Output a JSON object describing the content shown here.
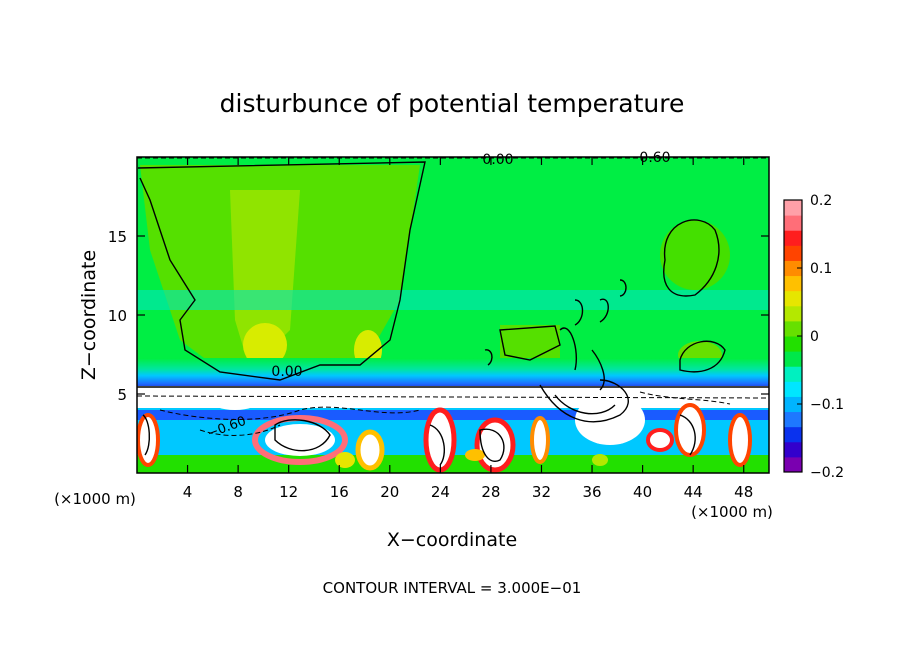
{
  "chart_data": {
    "type": "heatmap",
    "title": "disturbunce of potential temperature",
    "xlabel": "X−coordinate",
    "ylabel": "Z−coordinate",
    "x_unit_left": "(×1000 m)",
    "x_unit_right": "(×1000 m)",
    "x_ticks": [
      "4",
      "8",
      "12",
      "16",
      "20",
      "24",
      "28",
      "32",
      "36",
      "40",
      "44",
      "48"
    ],
    "y_ticks": [
      "5",
      "10",
      "15"
    ],
    "xlim": [
      0,
      50
    ],
    "ylim": [
      0,
      20
    ],
    "contour_interval_text": "CONTOUR INTERVAL = 3.000E−01",
    "contour_labels": [
      "0.00",
      "0.00",
      "0.00",
      "0.60",
      "−0.60"
    ],
    "colorbar": {
      "ticks": [
        "0.2",
        "0.1",
        "0",
        "−0.1",
        "−0.2"
      ],
      "range": [
        -0.2,
        0.2
      ],
      "colors": [
        "#7a00b0",
        "#3300cc",
        "#0a32ee",
        "#1e78ff",
        "#00b4ff",
        "#00e6ff",
        "#00f0c0",
        "#00e84a",
        "#22e000",
        "#66e000",
        "#b4e800",
        "#e6e600",
        "#ffc000",
        "#ff8c00",
        "#ff4400",
        "#ff1e1e",
        "#ff6e78",
        "#ffa0a8"
      ]
    }
  }
}
